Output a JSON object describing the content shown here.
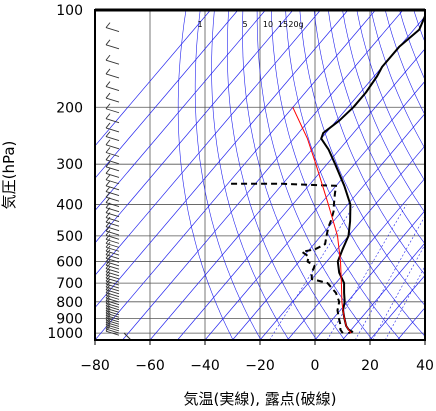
{
  "chart_data": {
    "type": "line",
    "diagram": "skew-T log-P (emagram)",
    "xlabel": "気温(実線), 露点(破線)",
    "ylabel": "気圧(hPa)",
    "xlim": [
      -80,
      40
    ],
    "ylim": [
      1050,
      100
    ],
    "y_scale": "log",
    "x_ticks": [
      -80,
      -60,
      -40,
      -20,
      0,
      20,
      40
    ],
    "x_tick_labels": [
      "−80",
      "−60",
      "−40",
      "−20",
      "0",
      "20",
      "40"
    ],
    "y_ticks": [
      1000,
      900,
      800,
      700,
      600,
      500,
      400,
      300,
      200,
      100
    ],
    "y_tick_labels": [
      "1000",
      "900",
      "800",
      "700",
      "600",
      "500",
      "400",
      "300",
      "200",
      "100"
    ],
    "mixing_ratio_labels": [
      {
        "text": "1",
        "value": 1
      },
      {
        "text": "5",
        "value": 5
      },
      {
        "text": "10",
        "value": 10
      },
      {
        "text": "15",
        "value": 15
      },
      {
        "text": "20g",
        "value": 20
      }
    ],
    "grid": true,
    "series": [
      {
        "role": "temperature",
        "style": "solid",
        "color": "#000000",
        "points": [
          {
            "p": 1000,
            "t": 10
          },
          {
            "p": 990,
            "t": 11
          },
          {
            "p": 975,
            "t": 9
          },
          {
            "p": 950,
            "t": 7
          },
          {
            "p": 900,
            "t": 4
          },
          {
            "p": 850,
            "t": 1
          },
          {
            "p": 800,
            "t": -1
          },
          {
            "p": 750,
            "t": -4
          },
          {
            "p": 700,
            "t": -7
          },
          {
            "p": 650,
            "t": -12
          },
          {
            "p": 600,
            "t": -16
          },
          {
            "p": 550,
            "t": -18
          },
          {
            "p": 500,
            "t": -20
          },
          {
            "p": 450,
            "t": -24
          },
          {
            "p": 400,
            "t": -29
          },
          {
            "p": 350,
            "t": -37
          },
          {
            "p": 300,
            "t": -47
          },
          {
            "p": 270,
            "t": -54
          },
          {
            "p": 250,
            "t": -60
          },
          {
            "p": 240,
            "t": -61
          },
          {
            "p": 220,
            "t": -59
          },
          {
            "p": 200,
            "t": -58
          },
          {
            "p": 180,
            "t": -58
          },
          {
            "p": 160,
            "t": -59
          },
          {
            "p": 150,
            "t": -60
          },
          {
            "p": 130,
            "t": -60
          },
          {
            "p": 115,
            "t": -58
          },
          {
            "p": 105,
            "t": -60
          },
          {
            "p": 100,
            "t": -60
          }
        ]
      },
      {
        "role": "dewpoint",
        "style": "dashed",
        "color": "#000000",
        "points": [
          {
            "p": 1000,
            "t": 8
          },
          {
            "p": 975,
            "t": 6
          },
          {
            "p": 950,
            "t": 5
          },
          {
            "p": 900,
            "t": 2
          },
          {
            "p": 850,
            "t": -1
          },
          {
            "p": 800,
            "t": -3
          },
          {
            "p": 750,
            "t": -7
          },
          {
            "p": 700,
            "t": -13
          },
          {
            "p": 680,
            "t": -20
          },
          {
            "p": 650,
            "t": -22
          },
          {
            "p": 620,
            "t": -23
          },
          {
            "p": 600,
            "t": -27
          },
          {
            "p": 580,
            "t": -28
          },
          {
            "p": 560,
            "t": -32
          },
          {
            "p": 550,
            "t": -28
          },
          {
            "p": 530,
            "t": -26
          },
          {
            "p": 500,
            "t": -28
          },
          {
            "p": 470,
            "t": -30
          },
          {
            "p": 450,
            "t": -31
          },
          {
            "p": 420,
            "t": -33
          },
          {
            "p": 400,
            "t": -35
          },
          {
            "p": 370,
            "t": -38
          },
          {
            "p": 350,
            "t": -40
          },
          {
            "p": 345,
            "t": -60
          },
          {
            "p": 345,
            "t": -80
          }
        ]
      },
      {
        "role": "parcel",
        "style": "solid",
        "color": "#ff0000",
        "points": [
          {
            "p": 1000,
            "t": 11
          },
          {
            "p": 975,
            "t": 9
          },
          {
            "p": 950,
            "t": 7
          },
          {
            "p": 900,
            "t": 4
          },
          {
            "p": 850,
            "t": 1
          },
          {
            "p": 800,
            "t": -2
          },
          {
            "p": 700,
            "t": -8
          },
          {
            "p": 600,
            "t": -15
          },
          {
            "p": 500,
            "t": -24
          },
          {
            "p": 400,
            "t": -37
          },
          {
            "p": 300,
            "t": -54
          },
          {
            "p": 250,
            "t": -65
          },
          {
            "p": 200,
            "t": -80
          }
        ]
      }
    ],
    "colors": {
      "background": "#ffffff",
      "frame": "#000000",
      "grid": "#555555",
      "adiabats": "#2222ee",
      "parcel": "#ff0000"
    }
  }
}
